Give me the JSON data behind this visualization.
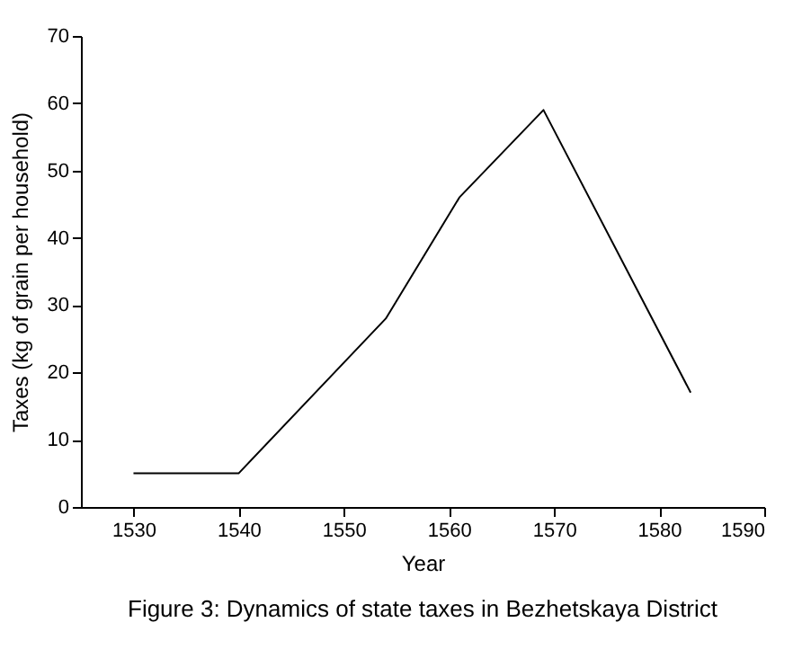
{
  "chart_data": {
    "type": "line",
    "title": "Figure 3: Dynamics of state taxes in Bezhetskaya District",
    "xlabel": "Year",
    "ylabel": "Taxes (kg of grain per household)",
    "x": [
      1530,
      1540,
      1554,
      1561,
      1569,
      1583
    ],
    "series": [
      {
        "color": "#000000",
        "values": [
          5,
          5,
          28,
          46,
          59,
          17
        ]
      }
    ],
    "xlim": [
      1525,
      1590
    ],
    "xticks": [
      1530,
      1540,
      1550,
      1560,
      1570,
      1580,
      1590
    ],
    "ylim": [
      0,
      70
    ],
    "yticks": [
      0,
      10,
      20,
      30,
      40,
      50,
      60,
      70
    ],
    "grid": false,
    "marker": "none",
    "line_style": "solid"
  }
}
